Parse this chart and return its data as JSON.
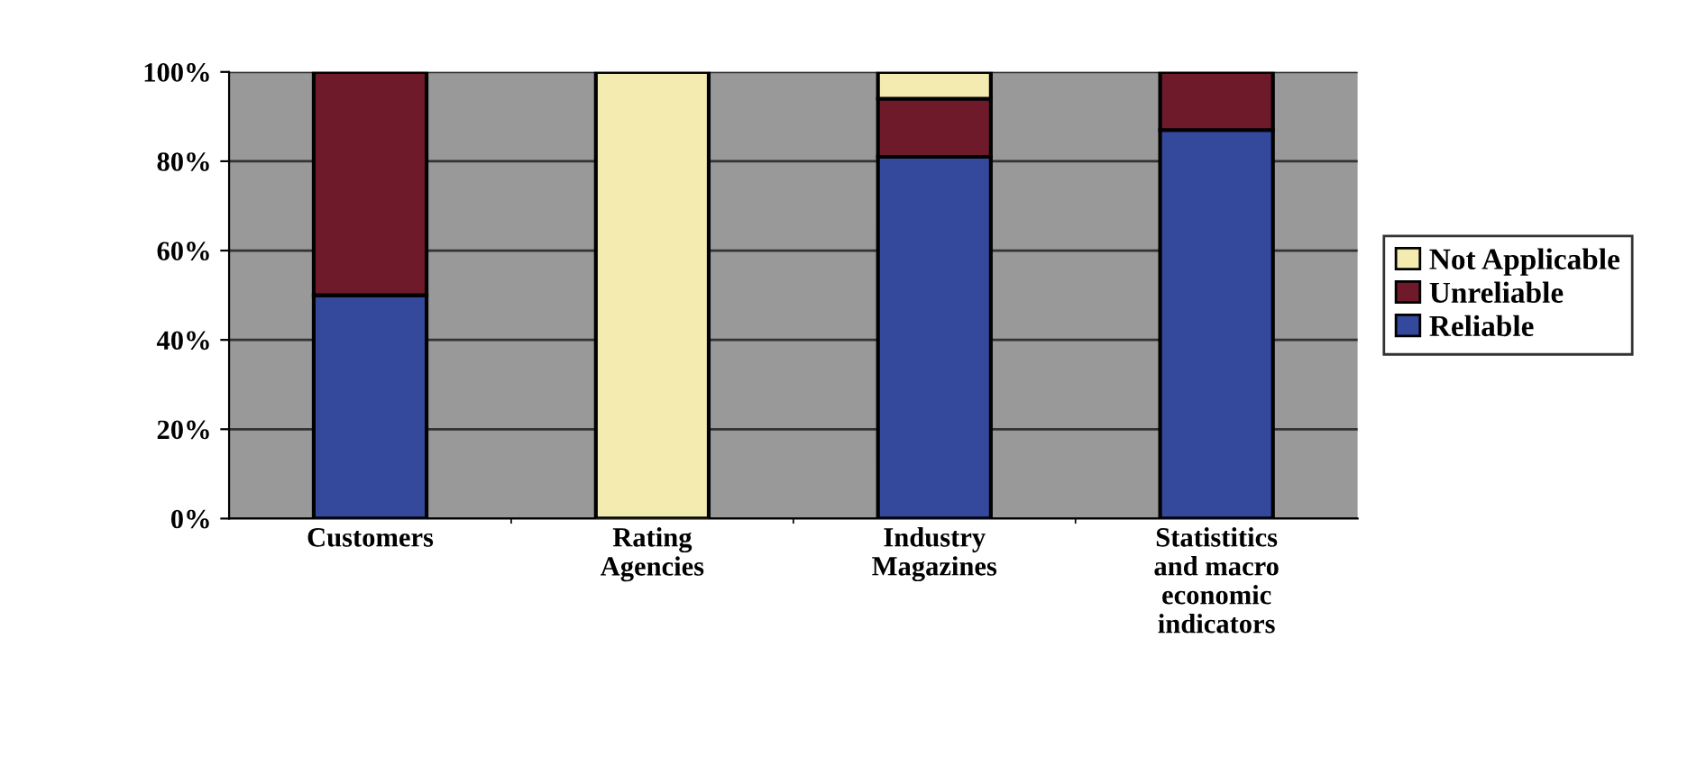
{
  "chart_data": {
    "type": "bar",
    "stacked": true,
    "categories": [
      "Customers",
      "Rating\nAgencies",
      "Industry\nMagazines",
      "Statistitics\nand macro\neconomic\nindicators"
    ],
    "series": [
      {
        "name": "Reliable",
        "color": "#34489c",
        "values": [
          50,
          null,
          81,
          87
        ]
      },
      {
        "name": "Unreliable",
        "color": "#6e1a2a",
        "values": [
          50,
          null,
          13,
          13
        ]
      },
      {
        "name": "Not Applicable",
        "color": "#f3ebb0",
        "values": [
          null,
          100,
          6,
          null
        ]
      }
    ],
    "ylim": [
      0,
      100
    ],
    "yticks": [
      {
        "value": 0,
        "label": "0%"
      },
      {
        "value": 20,
        "label": "20%"
      },
      {
        "value": 40,
        "label": "40%"
      },
      {
        "value": 60,
        "label": "60%"
      },
      {
        "value": 80,
        "label": "80%"
      },
      {
        "value": 100,
        "label": "100%"
      }
    ],
    "grid": "y",
    "legend": "right"
  }
}
